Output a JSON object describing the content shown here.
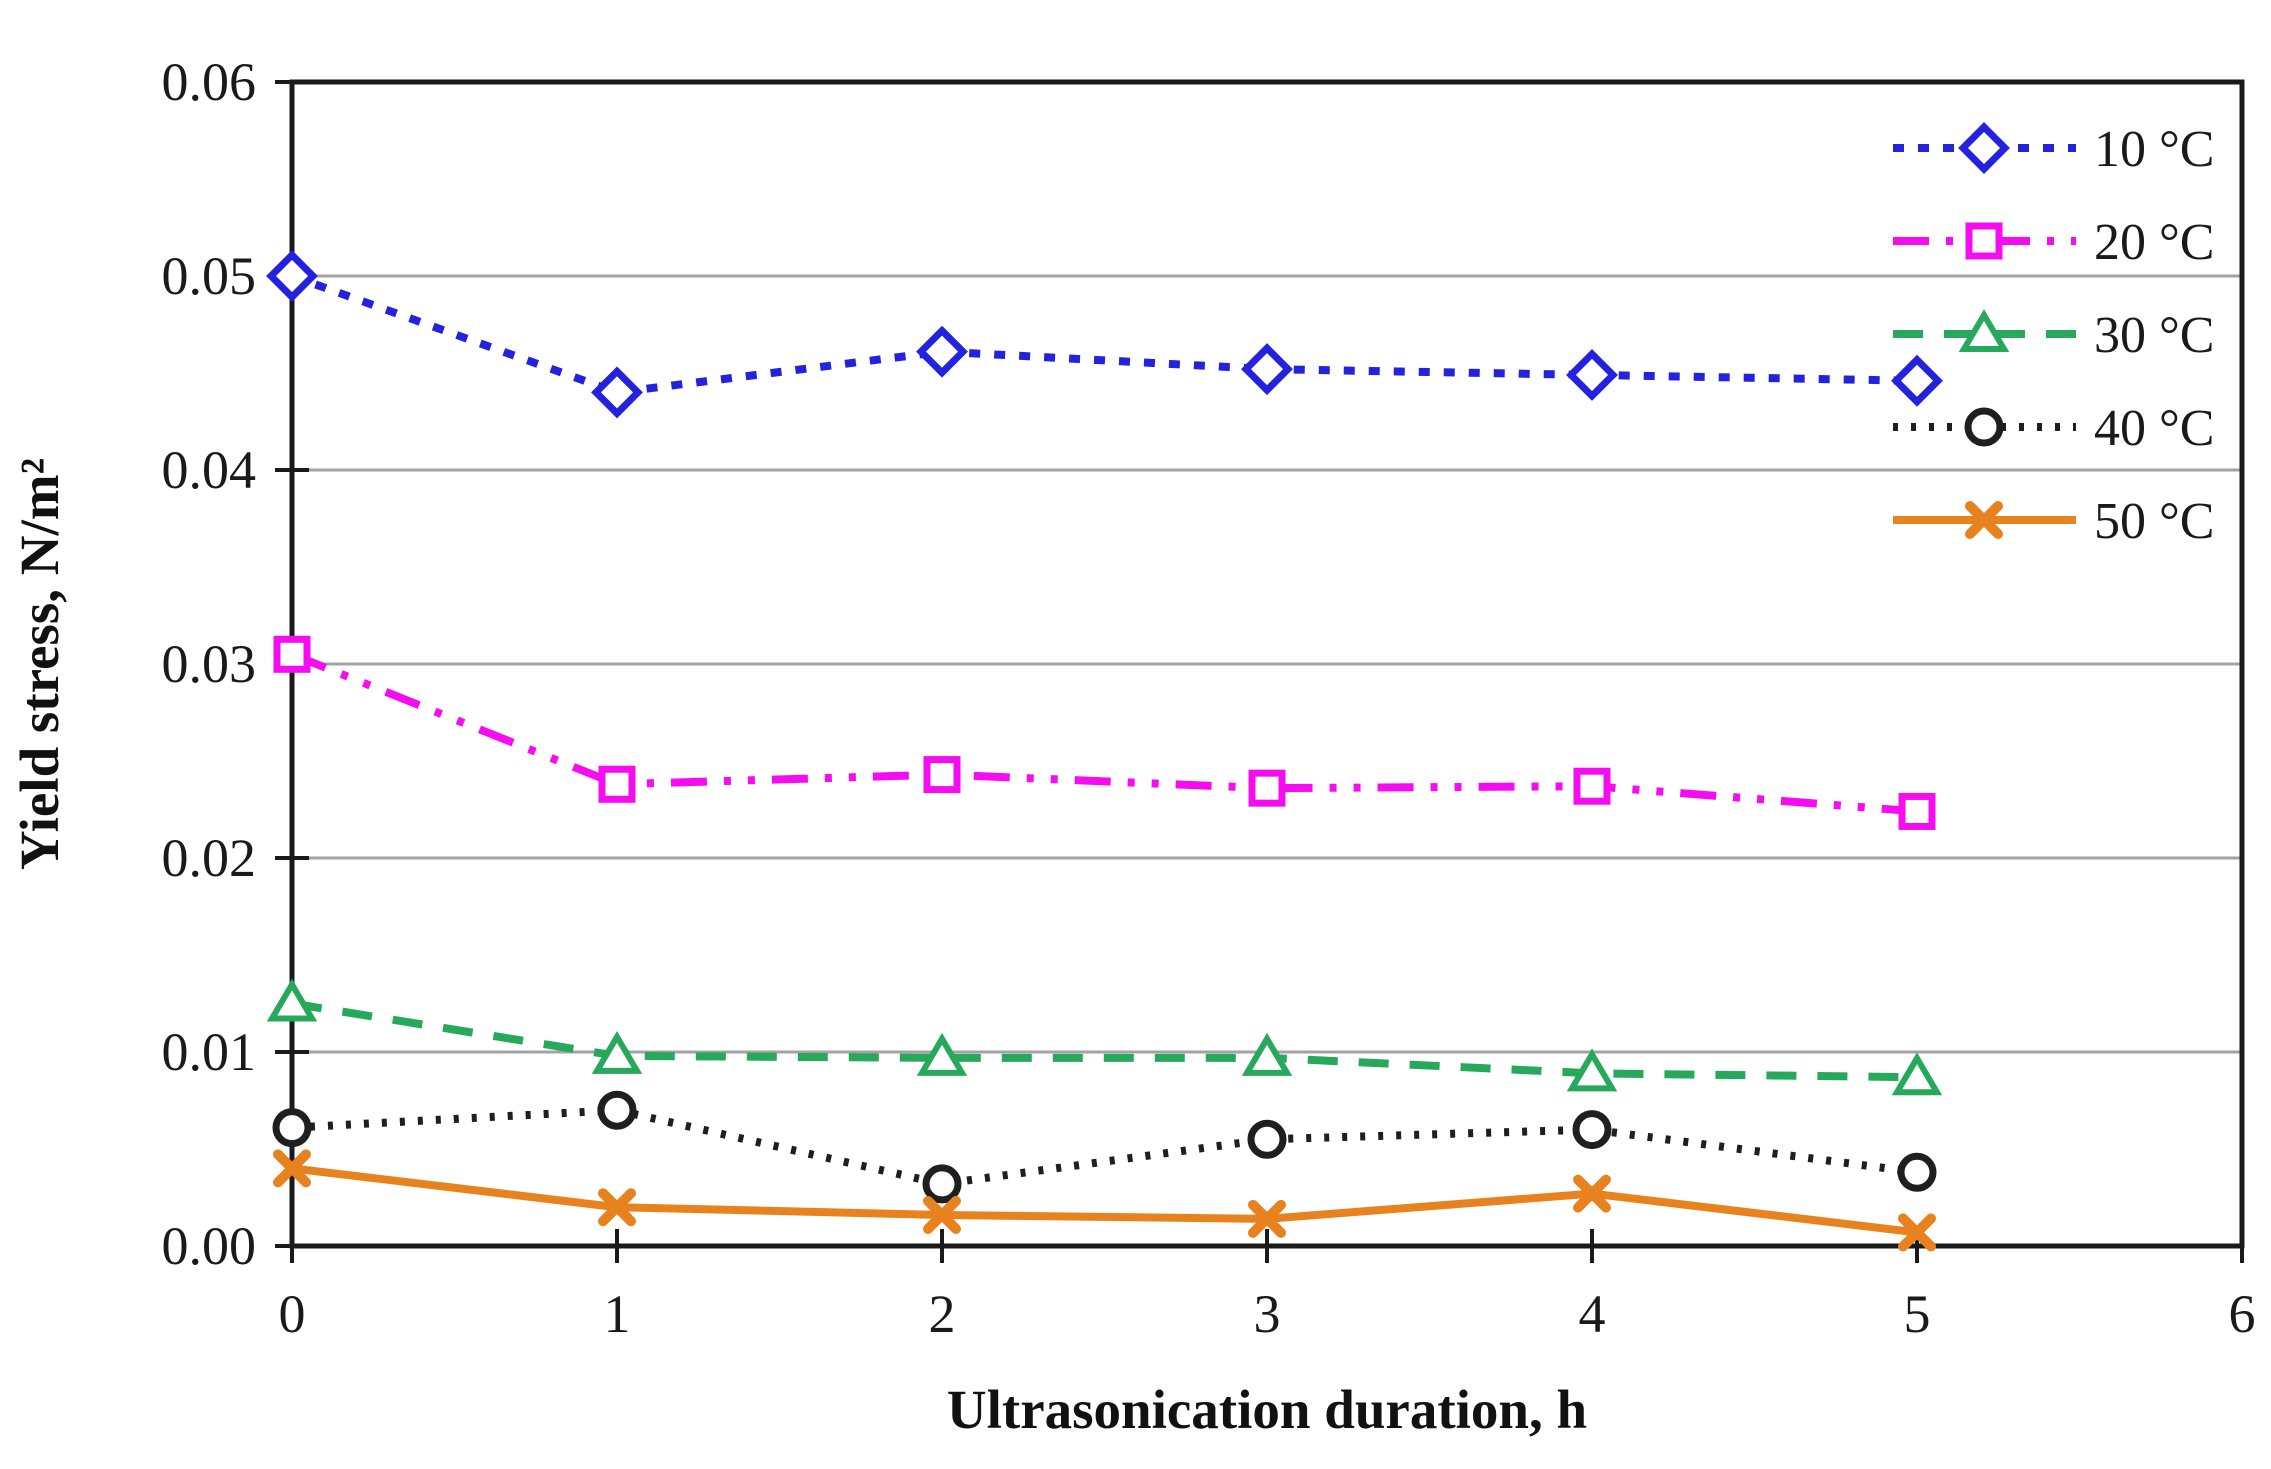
{
  "figure": {
    "background": "#ffffff",
    "border_color": "#1a1a1a",
    "gridline_color": "#a3a3a3"
  },
  "chart_data": {
    "type": "line",
    "title": "",
    "xlabel": "Ultrasonication duration, h",
    "ylabel": "Yield stress, N/m²",
    "x": [
      0,
      1,
      2,
      3,
      4,
      5
    ],
    "xlim": [
      0,
      6
    ],
    "ylim": [
      0,
      0.06
    ],
    "xticks": [
      "0",
      "1",
      "2",
      "3",
      "4",
      "5",
      "6"
    ],
    "yticks": [
      "0.00",
      "0.01",
      "0.02",
      "0.03",
      "0.04",
      "0.05",
      "0.06"
    ],
    "grid": "horizontal",
    "legend_position": "top-right-inside",
    "series": [
      {
        "name": "10 °C",
        "color": "#2323de",
        "marker": "diamond",
        "line_style": "dashed",
        "values": [
          0.05,
          0.044,
          0.0461,
          0.0452,
          0.0449,
          0.0446
        ]
      },
      {
        "name": "20 °C",
        "color": "#f50cf0",
        "marker": "square",
        "line_style": "dash-dot-dot",
        "values": [
          0.0305,
          0.0238,
          0.0243,
          0.0236,
          0.0237,
          0.0224
        ]
      },
      {
        "name": "30 °C",
        "color": "#27a95c",
        "marker": "triangle",
        "line_style": "long-dash",
        "values": [
          0.0125,
          0.0098,
          0.0097,
          0.0097,
          0.0089,
          0.0087
        ]
      },
      {
        "name": "40 °C",
        "color": "#1f1f1f",
        "marker": "circle",
        "line_style": "dotted",
        "values": [
          0.0061,
          0.007,
          0.0032,
          0.0055,
          0.006,
          0.0038
        ]
      },
      {
        "name": "50 °C",
        "color": "#e8821e",
        "marker": "x",
        "line_style": "solid",
        "values": [
          0.004,
          0.002,
          0.0016,
          0.0014,
          0.0027,
          0.0007
        ]
      }
    ]
  }
}
